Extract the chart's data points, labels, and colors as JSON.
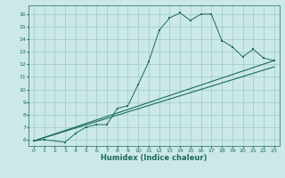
{
  "title": "",
  "xlabel": "Humidex (Indice chaleur)",
  "ylabel": "",
  "background_color": "#cce8e8",
  "line_color": "#1a6b5a",
  "xlim": [
    -0.5,
    23.5
  ],
  "ylim": [
    5.5,
    16.7
  ],
  "xticks": [
    0,
    1,
    2,
    3,
    4,
    5,
    6,
    7,
    8,
    9,
    10,
    11,
    12,
    13,
    14,
    15,
    16,
    17,
    18,
    19,
    20,
    21,
    22,
    23
  ],
  "yticks": [
    6,
    7,
    8,
    9,
    10,
    11,
    12,
    13,
    14,
    15,
    16
  ],
  "series1_x": [
    0,
    1,
    3,
    4,
    5,
    6,
    7,
    8,
    9,
    10,
    11,
    12,
    13,
    14,
    15,
    16,
    17,
    18,
    19,
    20,
    21,
    22,
    23
  ],
  "series1_y": [
    5.9,
    6.0,
    5.8,
    6.5,
    7.0,
    7.2,
    7.2,
    8.5,
    8.7,
    10.4,
    12.2,
    14.7,
    15.7,
    16.1,
    15.5,
    16.0,
    16.0,
    13.9,
    13.4,
    12.6,
    13.2,
    12.5,
    12.3
  ],
  "series2_x": [
    0,
    23
  ],
  "series2_y": [
    5.9,
    12.3
  ],
  "series3_x": [
    0,
    23
  ],
  "series3_y": [
    5.9,
    11.8
  ],
  "grid_color": "#99cccc",
  "tick_fontsize": 4.5,
  "xlabel_fontsize": 6.0
}
